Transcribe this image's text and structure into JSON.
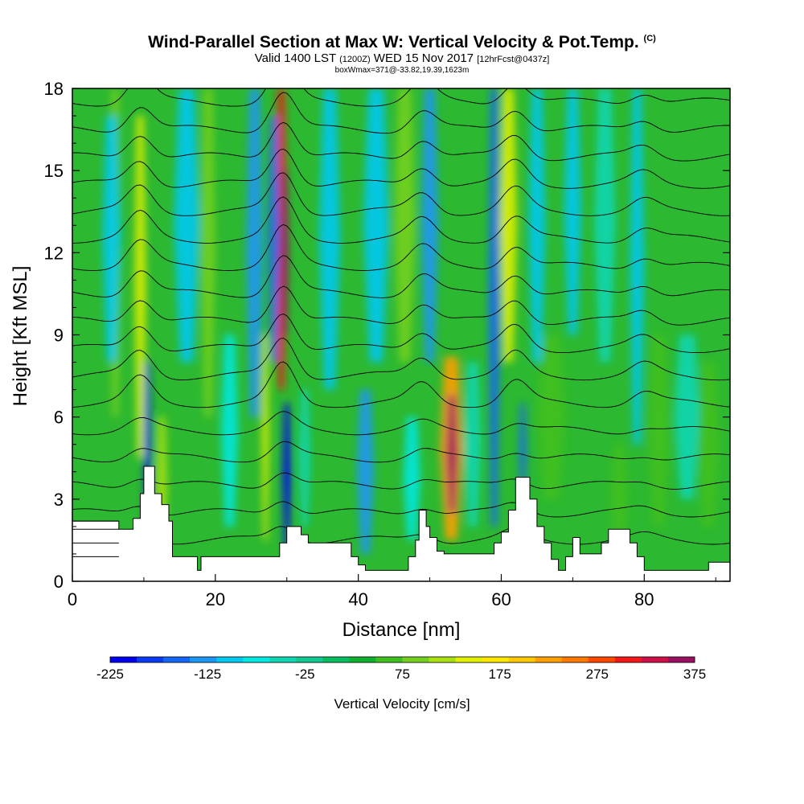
{
  "header": {
    "title": "Wind-Parallel Section at Max W: Vertical Velocity & Pot.Temp.",
    "copyright": "(C)",
    "valid_prefix": "Valid 1400 LST",
    "valid_utc": "(1200Z)",
    "valid_suffix": "WED 15 Nov 2017",
    "forecast": "[12hrFcst@0437z]",
    "boxwmax": "boxWmax=371@-33.82,19.39,1623m"
  },
  "colorbar": {
    "label": "Vertical Velocity [cm/s]",
    "tick_labels": [
      "-225",
      "-125",
      "-25",
      "75",
      "175",
      "275",
      "375"
    ],
    "colors": [
      "#0000ee",
      "#0a3af2",
      "#1466f4",
      "#1c96f4",
      "#00c8f0",
      "#00e8e0",
      "#10d6b4",
      "#10c890",
      "#08bc60",
      "#10b030",
      "#40c020",
      "#74d020",
      "#a8e010",
      "#e0f000",
      "#ffe800",
      "#ffc800",
      "#ffa000",
      "#ff7800",
      "#ff4800",
      "#f41818",
      "#d0104a",
      "#9a1060"
    ]
  },
  "chart_data": {
    "type": "heatmap",
    "xlabel": "Distance [nm]",
    "ylabel": "Height [Kft MSL]",
    "xlim": [
      0,
      92
    ],
    "ylim": [
      0,
      18
    ],
    "x_ticks": [
      "0",
      "20",
      "40",
      "60",
      "80"
    ],
    "y_ticks": [
      "0",
      "3",
      "6",
      "9",
      "12",
      "15",
      "18"
    ],
    "field": "Vertical Velocity [cm/s]",
    "color_range": [
      -225,
      375
    ],
    "max_w": 371,
    "features": [
      {
        "x": 9.5,
        "z_range": [
          4,
          17
        ],
        "w": 150
      },
      {
        "x": 29.5,
        "z_range": [
          6,
          18
        ],
        "w": 330
      },
      {
        "x": 30.0,
        "z_range": [
          1.5,
          6
        ],
        "w": -200
      },
      {
        "x": 53.0,
        "z_range": [
          2,
          8
        ],
        "w": 371
      },
      {
        "x": 61.0,
        "z_range": [
          8,
          18
        ],
        "w": 140
      },
      {
        "x": 63.0,
        "z_range": [
          3,
          6
        ],
        "w": -150
      }
    ],
    "terrain": [
      [
        0,
        2.2
      ],
      [
        6.5,
        2.2
      ],
      [
        6.5,
        1.9
      ],
      [
        8.5,
        1.9
      ],
      [
        8.5,
        2.3
      ],
      [
        9.5,
        2.3
      ],
      [
        9.5,
        3.2
      ],
      [
        10,
        3.2
      ],
      [
        10,
        4.2
      ],
      [
        11.5,
        4.2
      ],
      [
        11.5,
        3.2
      ],
      [
        12.5,
        3.2
      ],
      [
        12.5,
        2.8
      ],
      [
        13.5,
        2.8
      ],
      [
        13.5,
        2.2
      ],
      [
        14,
        2.2
      ],
      [
        14,
        0.9
      ],
      [
        17.5,
        0.9
      ],
      [
        17.5,
        0.4
      ],
      [
        18,
        0.4
      ],
      [
        18,
        0.9
      ],
      [
        29,
        0.9
      ],
      [
        29,
        1.4
      ],
      [
        30,
        1.4
      ],
      [
        30,
        2.0
      ],
      [
        32,
        2.0
      ],
      [
        32,
        1.7
      ],
      [
        33,
        1.7
      ],
      [
        33,
        1.4
      ],
      [
        39,
        1.4
      ],
      [
        39,
        0.9
      ],
      [
        40,
        0.9
      ],
      [
        40,
        0.6
      ],
      [
        41,
        0.6
      ],
      [
        41,
        0.4
      ],
      [
        47,
        0.4
      ],
      [
        47,
        0.9
      ],
      [
        48,
        0.9
      ],
      [
        48,
        1.5
      ],
      [
        48.5,
        1.5
      ],
      [
        48.5,
        2.6
      ],
      [
        49.5,
        2.6
      ],
      [
        49.5,
        2.0
      ],
      [
        50,
        2.0
      ],
      [
        50,
        1.6
      ],
      [
        51,
        1.6
      ],
      [
        51,
        1.1
      ],
      [
        52,
        1.1
      ],
      [
        52,
        1.0
      ],
      [
        59,
        1.0
      ],
      [
        59,
        1.4
      ],
      [
        60,
        1.4
      ],
      [
        60,
        1.8
      ],
      [
        61,
        1.8
      ],
      [
        61,
        2.6
      ],
      [
        62,
        2.6
      ],
      [
        62,
        3.8
      ],
      [
        64,
        3.8
      ],
      [
        64,
        3.0
      ],
      [
        65,
        3.0
      ],
      [
        65,
        2.0
      ],
      [
        66,
        2.0
      ],
      [
        66,
        1.4
      ],
      [
        67,
        1.4
      ],
      [
        67,
        0.8
      ],
      [
        68,
        0.8
      ],
      [
        68,
        0.4
      ],
      [
        69,
        0.4
      ],
      [
        69,
        0.9
      ],
      [
        70,
        0.9
      ],
      [
        70,
        1.6
      ],
      [
        71,
        1.6
      ],
      [
        71,
        1.0
      ],
      [
        74,
        1.0
      ],
      [
        74,
        1.4
      ],
      [
        75,
        1.4
      ],
      [
        75,
        1.9
      ],
      [
        78,
        1.9
      ],
      [
        78,
        1.4
      ],
      [
        79,
        1.4
      ],
      [
        79,
        0.9
      ],
      [
        80,
        0.9
      ],
      [
        80,
        0.4
      ],
      [
        89,
        0.4
      ],
      [
        89,
        0.7
      ],
      [
        92,
        0.7
      ]
    ]
  }
}
